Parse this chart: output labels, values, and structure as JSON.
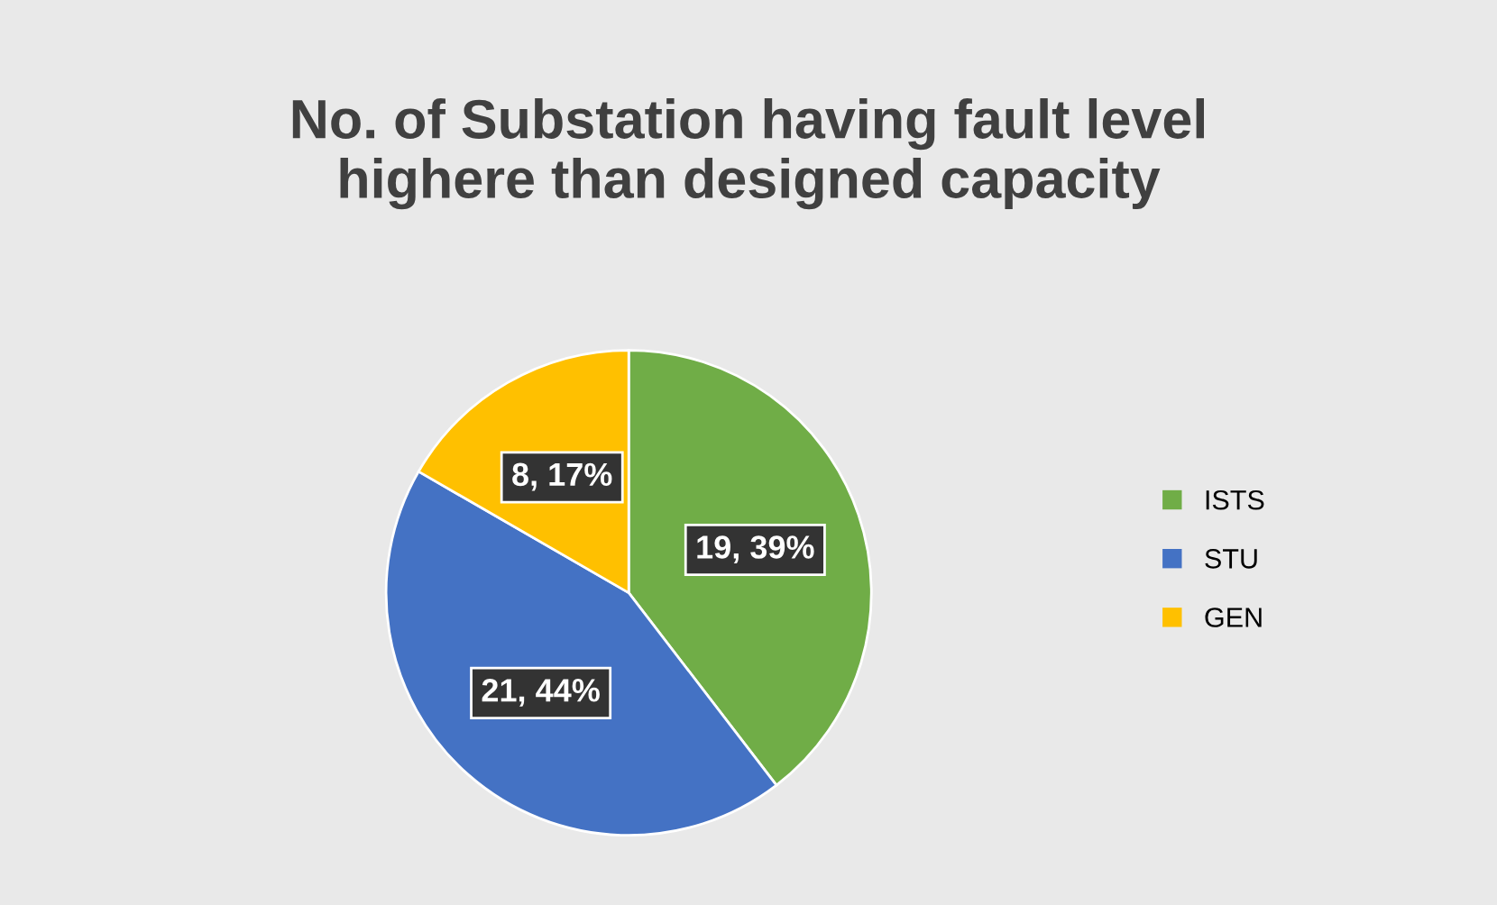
{
  "chart_data": {
    "type": "pie",
    "title": "No. of Substation having fault level\nhighere than designed capacity",
    "categories": [
      "ISTS",
      "STU",
      "GEN"
    ],
    "values": [
      19,
      21,
      8
    ],
    "colors": [
      "#70ad47",
      "#4472c4",
      "#ffc000"
    ],
    "value_labels": [
      "19, 39%",
      "21, 44%",
      "8, 17%"
    ],
    "legend": "right"
  }
}
